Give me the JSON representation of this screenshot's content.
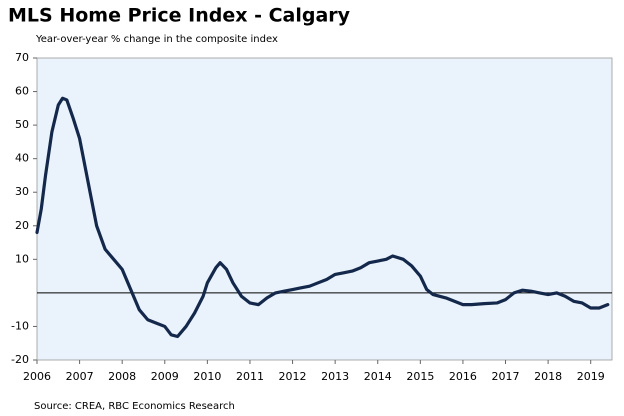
{
  "chart_data": {
    "type": "line",
    "title": "MLS Home Price Index - Calgary",
    "subtitle": "Year-over-year % change in the composite index",
    "source": "Source: CREA, RBC Economics Research",
    "x": [
      2006.0,
      2006.1,
      2006.2,
      2006.35,
      2006.5,
      2006.6,
      2006.7,
      2006.85,
      2007.0,
      2007.2,
      2007.4,
      2007.6,
      2007.8,
      2008.0,
      2008.2,
      2008.4,
      2008.6,
      2008.8,
      2009.0,
      2009.15,
      2009.3,
      2009.5,
      2009.7,
      2009.9,
      2010.0,
      2010.2,
      2010.3,
      2010.45,
      2010.6,
      2010.8,
      2011.0,
      2011.2,
      2011.4,
      2011.6,
      2011.8,
      2012.0,
      2012.2,
      2012.4,
      2012.6,
      2012.8,
      2013.0,
      2013.2,
      2013.4,
      2013.6,
      2013.8,
      2014.0,
      2014.2,
      2014.35,
      2014.6,
      2014.8,
      2015.0,
      2015.15,
      2015.3,
      2015.6,
      2015.8,
      2016.0,
      2016.2,
      2016.5,
      2016.8,
      2017.0,
      2017.2,
      2017.4,
      2017.6,
      2017.8,
      2018.0,
      2018.2,
      2018.4,
      2018.6,
      2018.8,
      2019.0,
      2019.2,
      2019.4
    ],
    "series": [
      {
        "name": "Calgary",
        "color": "#14284b",
        "values": [
          18,
          25,
          35,
          48,
          56,
          58,
          57.5,
          52,
          46,
          33,
          20,
          13,
          10,
          7,
          1,
          -5,
          -8,
          -9,
          -10,
          -12.5,
          -13,
          -10,
          -6,
          -1,
          3,
          7.5,
          9,
          7,
          3,
          -1,
          -3,
          -3.5,
          -1.5,
          0,
          0.5,
          1,
          1.5,
          2,
          3,
          4,
          5.5,
          6,
          6.5,
          7.5,
          9,
          9.5,
          10,
          11,
          10,
          8,
          5,
          1,
          -0.5,
          -1.5,
          -2.5,
          -3.5,
          -3.5,
          -3.2,
          -3,
          -2,
          0,
          0.8,
          0.5,
          0,
          -0.5,
          0,
          -1,
          -2.5,
          -3,
          -4.5,
          -4.5,
          -3.5
        ]
      }
    ],
    "xlim": [
      2006,
      2019.5
    ],
    "xticks": [
      2006,
      2007,
      2008,
      2009,
      2010,
      2011,
      2012,
      2013,
      2014,
      2015,
      2016,
      2017,
      2018,
      2019
    ],
    "ylim": [
      -20,
      70
    ],
    "yticks": [
      -20,
      -10,
      10,
      20,
      30,
      40,
      50,
      60,
      70
    ]
  }
}
